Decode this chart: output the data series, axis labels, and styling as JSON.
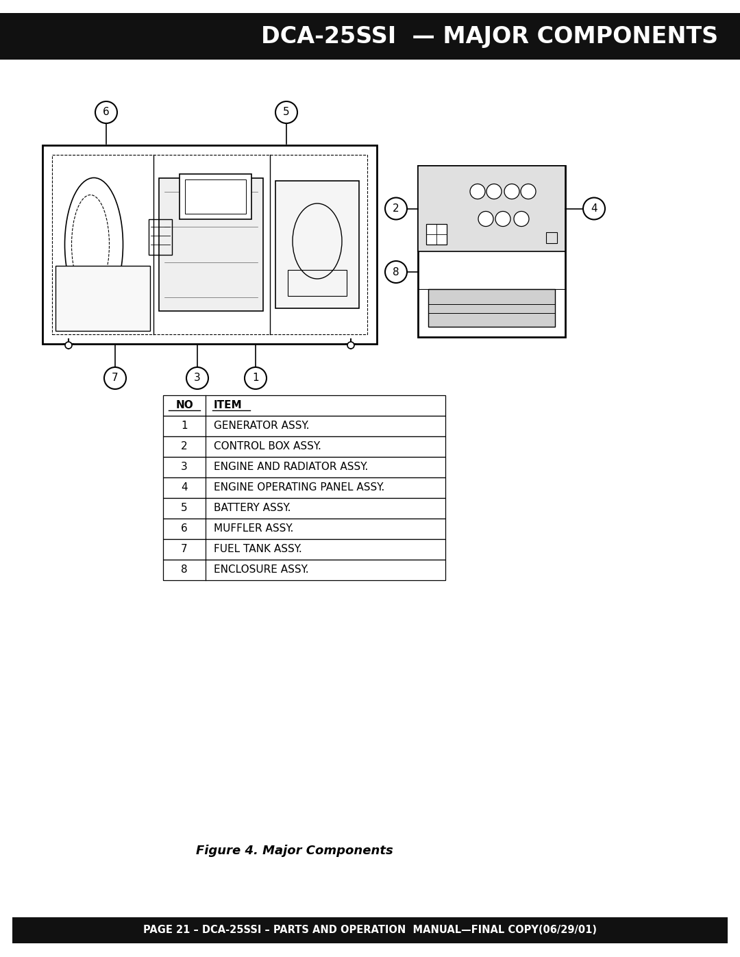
{
  "title": "DCA-25SSI  — MAJOR COMPONENTS",
  "footer": "PAGE 21 – DCA-25SSI – PARTS AND OPERATION  MANUAL—FINAL COPY(06/29/01)",
  "figure_caption": "Figure 4. Major Components",
  "bg_color": "#ffffff",
  "header_bg": "#111111",
  "header_text_color": "#ffffff",
  "footer_bg": "#111111",
  "footer_text_color": "#ffffff",
  "table_items": [
    {
      "no": "NO",
      "item": "ITEM",
      "header": true
    },
    {
      "no": "1",
      "item": "GENERATOR ASSY."
    },
    {
      "no": "2",
      "item": "CONTROL BOX ASSY."
    },
    {
      "no": "3",
      "item": "ENGINE AND RADIATOR ASSY."
    },
    {
      "no": "4",
      "item": "ENGINE OPERATING PANEL ASSY."
    },
    {
      "no": "5",
      "item": "BATTERY ASSY."
    },
    {
      "no": "6",
      "item": "MUFFLER ASSY."
    },
    {
      "no": "7",
      "item": "FUEL TANK ASSY."
    },
    {
      "no": "8",
      "item": "ENCLOSURE ASSY."
    }
  ]
}
